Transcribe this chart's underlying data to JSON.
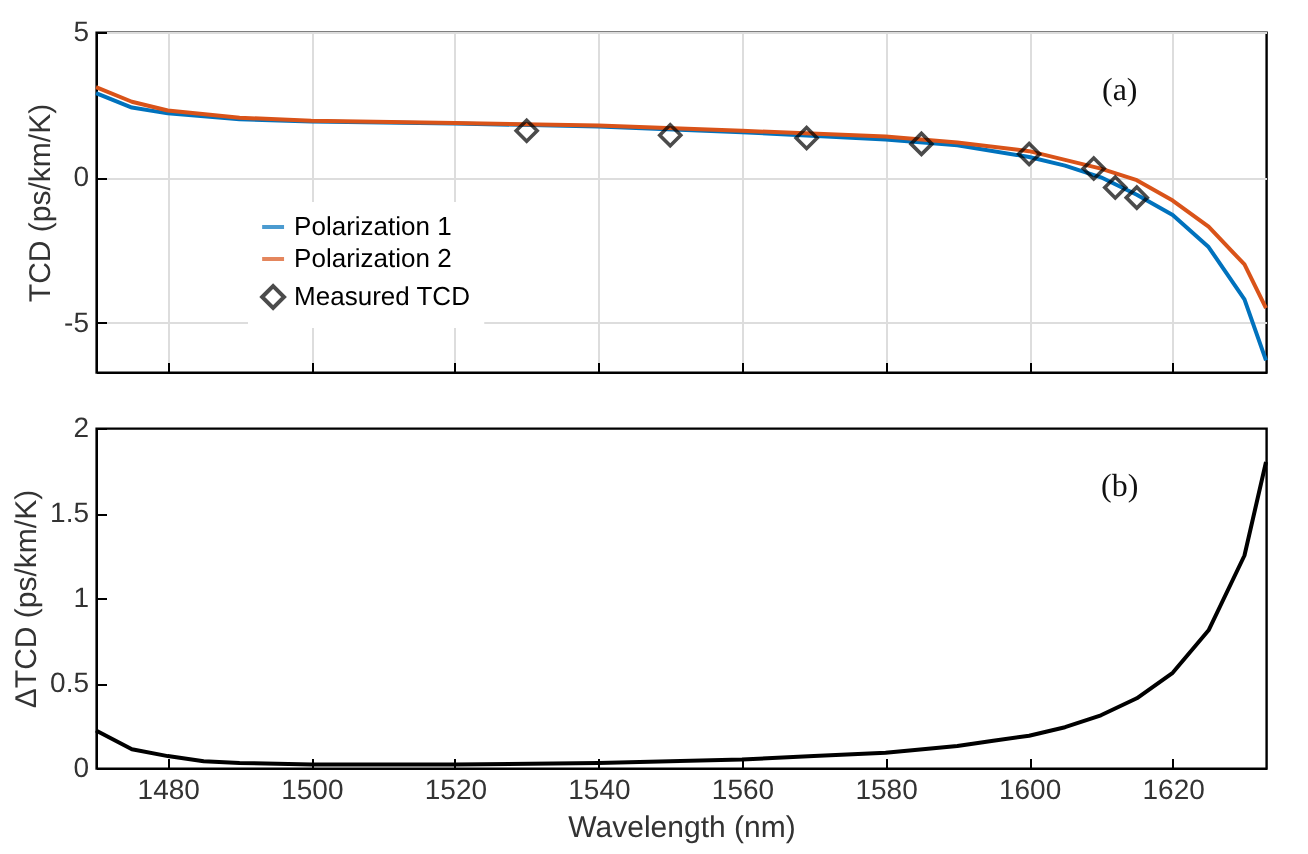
{
  "chart_data": [
    {
      "type": "line",
      "ylabel": "TCD (ps/km/K)",
      "xlim": [
        1470,
        1633
      ],
      "xticks": [
        1480,
        1500,
        1520,
        1540,
        1560,
        1580,
        1600,
        1620
      ],
      "ylim": [
        -6.7,
        5
      ],
      "yticks": [
        -5,
        0,
        5
      ],
      "tick_labels": "y",
      "grid": true,
      "legend": "left",
      "annotations": [
        "(a)"
      ],
      "x": [
        1470,
        1475,
        1480,
        1490,
        1500,
        1520,
        1540,
        1560,
        1580,
        1590,
        1600,
        1605,
        1610,
        1615,
        1620,
        1625,
        1630,
        1633
      ],
      "series": [
        {
          "name": "Polarization 1",
          "color": "#0072bd",
          "values": [
            2.9,
            2.4,
            2.2,
            2.0,
            1.92,
            1.85,
            1.75,
            1.55,
            1.3,
            1.1,
            0.7,
            0.4,
            0.0,
            -0.6,
            -1.3,
            -2.4,
            -4.2,
            -6.3
          ]
        },
        {
          "name": "Polarization 2",
          "color": "#d95319",
          "values": [
            3.1,
            2.6,
            2.3,
            2.05,
            1.95,
            1.87,
            1.78,
            1.6,
            1.4,
            1.2,
            0.9,
            0.6,
            0.3,
            -0.1,
            -0.8,
            -1.7,
            -3.0,
            -4.5
          ]
        },
        {
          "name": "Measured TCD",
          "type": "scatter",
          "marker": "diamond",
          "color": "#000000",
          "x": [
            1530,
            1550,
            1569,
            1585,
            1600,
            1609,
            1612,
            1615
          ],
          "values": [
            1.6,
            1.45,
            1.35,
            1.15,
            0.8,
            0.3,
            -0.35,
            -0.7
          ]
        }
      ]
    },
    {
      "type": "line",
      "xlabel": "Wavelength (nm)",
      "ylabel": "ΔTCD (ps/km/K)",
      "xlim": [
        1470,
        1633
      ],
      "xticks": [
        1480,
        1500,
        1520,
        1540,
        1560,
        1580,
        1600,
        1620
      ],
      "ylim": [
        0,
        2
      ],
      "yticks": [
        0,
        0.5,
        1,
        1.5,
        2
      ],
      "annotations": [
        "(b)"
      ],
      "x": [
        1470,
        1475,
        1480,
        1485,
        1490,
        1500,
        1520,
        1540,
        1560,
        1570,
        1580,
        1590,
        1595,
        1600,
        1605,
        1610,
        1615,
        1620,
        1625,
        1630,
        1633
      ],
      "series": [
        {
          "color": "#000000",
          "values": [
            0.22,
            0.11,
            0.07,
            0.04,
            0.03,
            0.02,
            0.02,
            0.03,
            0.05,
            0.07,
            0.09,
            0.13,
            0.16,
            0.19,
            0.24,
            0.31,
            0.41,
            0.56,
            0.81,
            1.25,
            1.8
          ]
        }
      ]
    }
  ]
}
